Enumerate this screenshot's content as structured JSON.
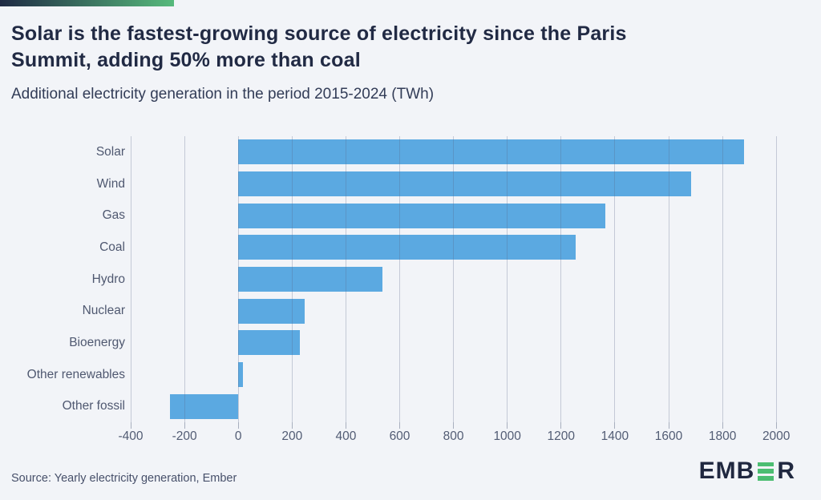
{
  "header": {
    "title_line1": "Solar is the fastest-growing source of electricity since the Paris",
    "title_line2": "Summit, adding 50% more than coal",
    "subtitle": "Additional electricity generation in the period 2015-2024 (TWh)"
  },
  "chart_data": {
    "type": "bar",
    "orientation": "horizontal",
    "title": "Solar is the fastest-growing source of electricity since the Paris Summit, adding 50% more than coal",
    "subtitle": "Additional electricity generation in the period 2015-2024 (TWh)",
    "unit": "TWh",
    "categories": [
      "Solar",
      "Wind",
      "Gas",
      "Coal",
      "Hydro",
      "Nuclear",
      "Bioenergy",
      "Other renewables",
      "Other fossil"
    ],
    "values": [
      1880,
      1685,
      1365,
      1255,
      537,
      247,
      230,
      17,
      -255
    ],
    "xlabel": "",
    "ylabel": "",
    "xlim": [
      -400,
      2050
    ],
    "xticks": [
      -400,
      -200,
      0,
      200,
      400,
      600,
      800,
      1000,
      1200,
      1400,
      1600,
      1800,
      2000
    ],
    "grid": true,
    "legend": "none"
  },
  "colors": {
    "background": "#F2F4F8",
    "bar": "#5BA9E1",
    "gridline": "rgba(90,104,135,0.30)",
    "title": "#212A44",
    "accent_from": "#1F2A44",
    "accent_to": "#57BA7C",
    "logo_navy": "#202840",
    "logo_green": "#4CBD72"
  },
  "footer": {
    "source": "Source: Yearly electricity generation, Ember",
    "logo_prefix": "EMB",
    "logo_suffix": "R"
  }
}
